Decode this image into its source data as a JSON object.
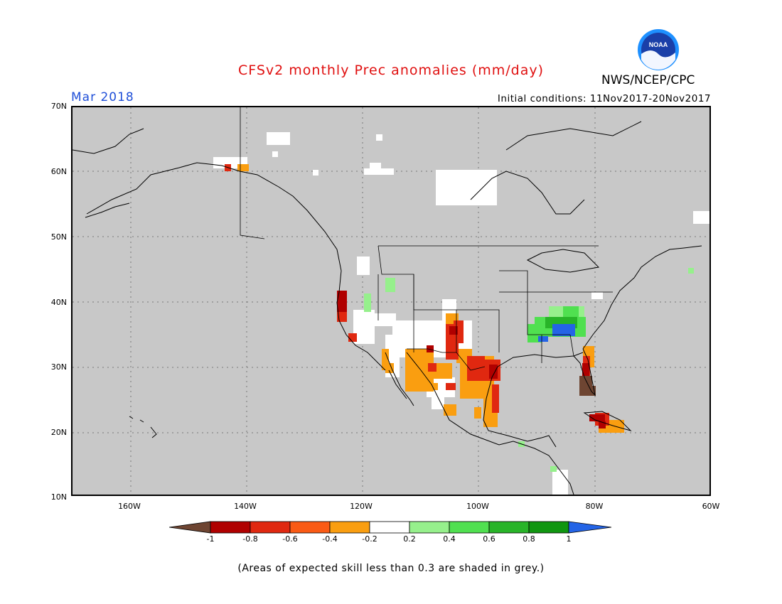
{
  "header": {
    "title": "CFSv2 monthly Prec anomalies (mm/day)",
    "agency": "NWS/NCEP/CPC",
    "logo_text": "NOAA",
    "month": "Mar 2018",
    "initial_conditions": "Initial conditions: 11Nov2017-20Nov2017"
  },
  "map": {
    "lat_labels": [
      "70N",
      "60N",
      "50N",
      "40N",
      "30N",
      "20N",
      "10N"
    ],
    "lon_labels": [
      "160W",
      "140W",
      "120W",
      "100W",
      "80W",
      "60W"
    ],
    "colors": {
      "background_grey": "#c8c8c8",
      "coastline": "#000000"
    }
  },
  "colorbar": {
    "labels": [
      "-1",
      "-0.8",
      "-0.6",
      "-0.4",
      "-0.2",
      "0.2",
      "0.4",
      "0.6",
      "0.8",
      "1"
    ],
    "colors": [
      "#6e4532",
      "#b00000",
      "#e02810",
      "#fa5a14",
      "#fa9e10",
      "#ffffff",
      "#96f08c",
      "#50e050",
      "#28b428",
      "#109610",
      "#2464e6"
    ]
  },
  "footnote": "(Areas of expected skill less than 0.3 are shaded in grey.)"
}
